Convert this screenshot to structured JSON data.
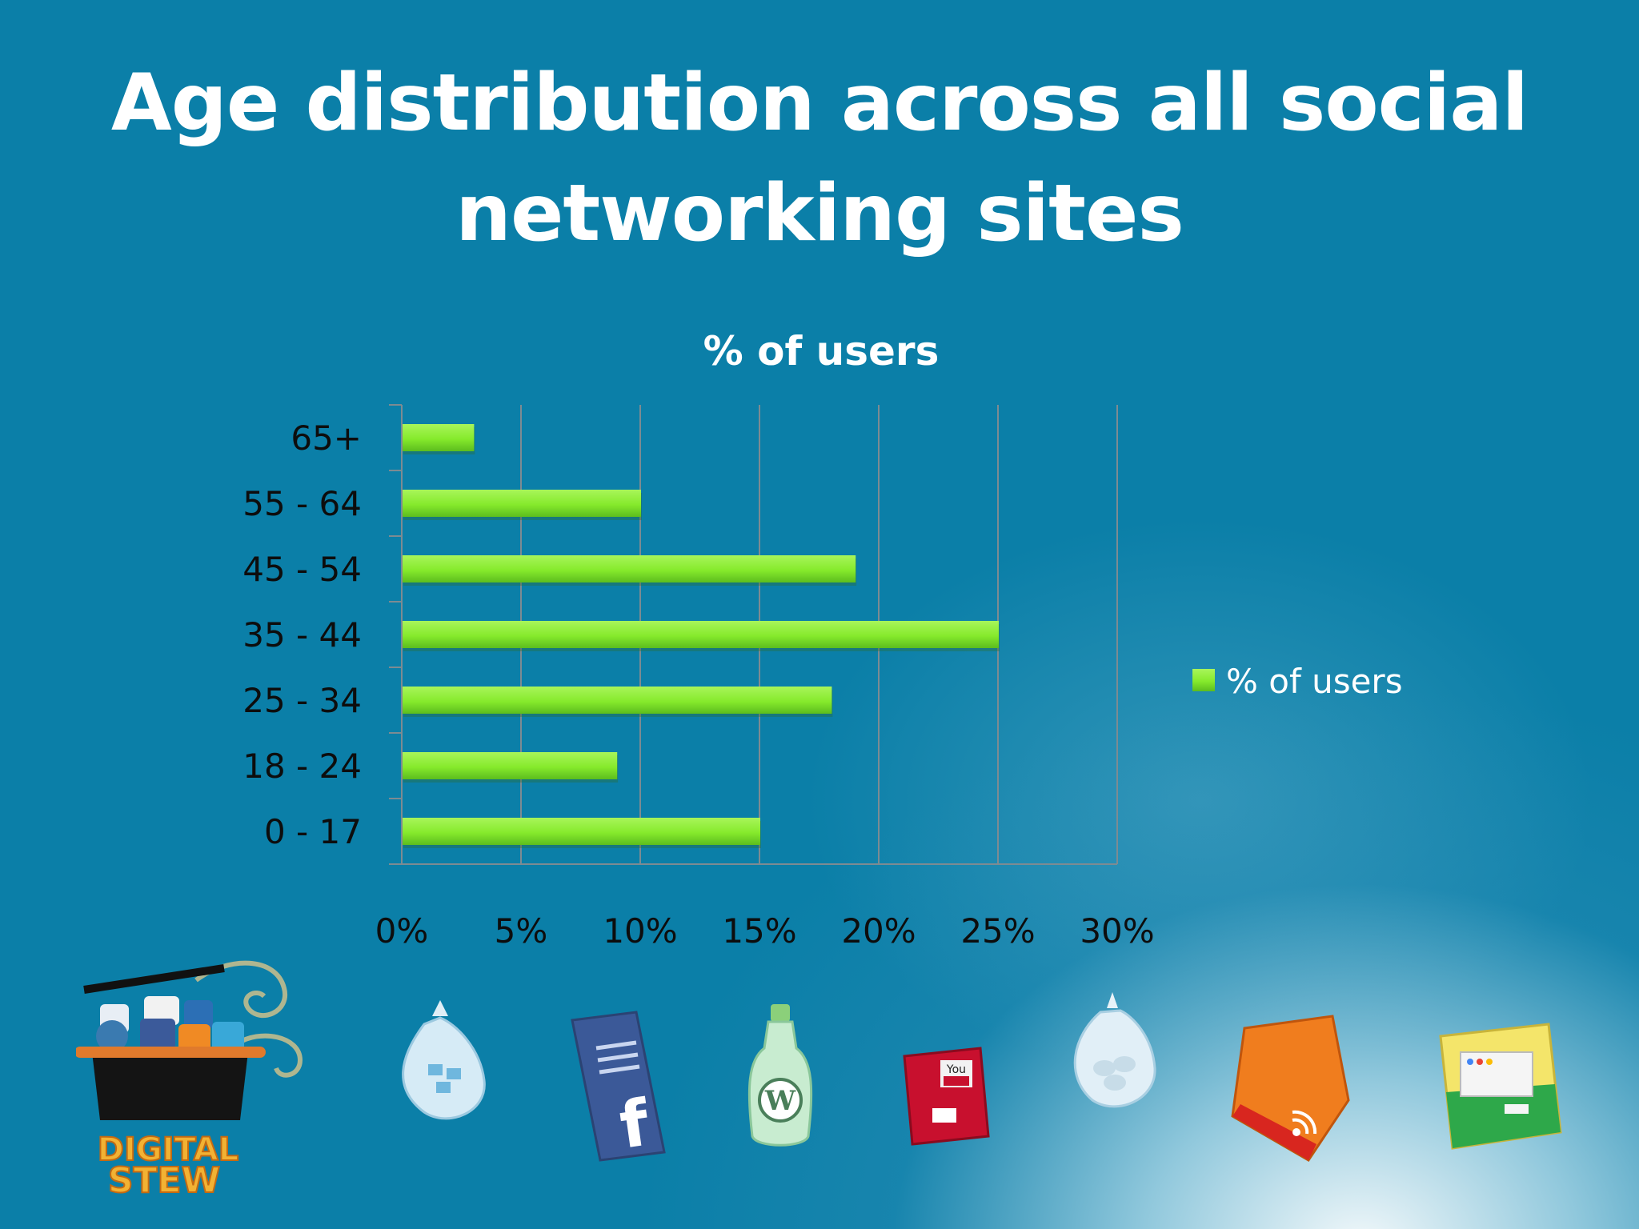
{
  "slide": {
    "title": "Age distribution across all social networking sites"
  },
  "logo": {
    "text": "DIGITAL STEW",
    "icons": [
      "myspace-icon",
      "youtube-icon",
      "linkedin-icon",
      "wordpress-icon",
      "facebook-icon",
      "rss-icon",
      "twitter-icon"
    ]
  },
  "colors": {
    "background": "#0b7fa8",
    "bar": "#86ea2c",
    "bar_shadow": "#4fa51a",
    "text_dark": "#0d0d0d",
    "text_light": "#ffffff"
  },
  "chart_data": {
    "type": "bar",
    "orientation": "horizontal",
    "title": "% of users",
    "categories": [
      "0 - 17",
      "18 - 24",
      "25 - 34",
      "35 - 44",
      "45 - 54",
      "55 - 64",
      "65+"
    ],
    "series": [
      {
        "name": "% of users",
        "values": [
          15,
          9,
          18,
          25,
          19,
          10,
          3
        ]
      }
    ],
    "xlim": [
      0,
      30
    ],
    "x_ticks": [
      "0%",
      "5%",
      "10%",
      "15%",
      "20%",
      "25%",
      "30%"
    ],
    "grid": true,
    "legend": {
      "position": "right",
      "entries": [
        "% of users"
      ]
    }
  },
  "footer_icons": [
    "twitter-bag-icon",
    "facebook-bag-icon",
    "wordpress-bottle-icon",
    "youtube-box-icon",
    "myspace-bag-icon",
    "rss-bag-icon",
    "google-box-icon"
  ]
}
